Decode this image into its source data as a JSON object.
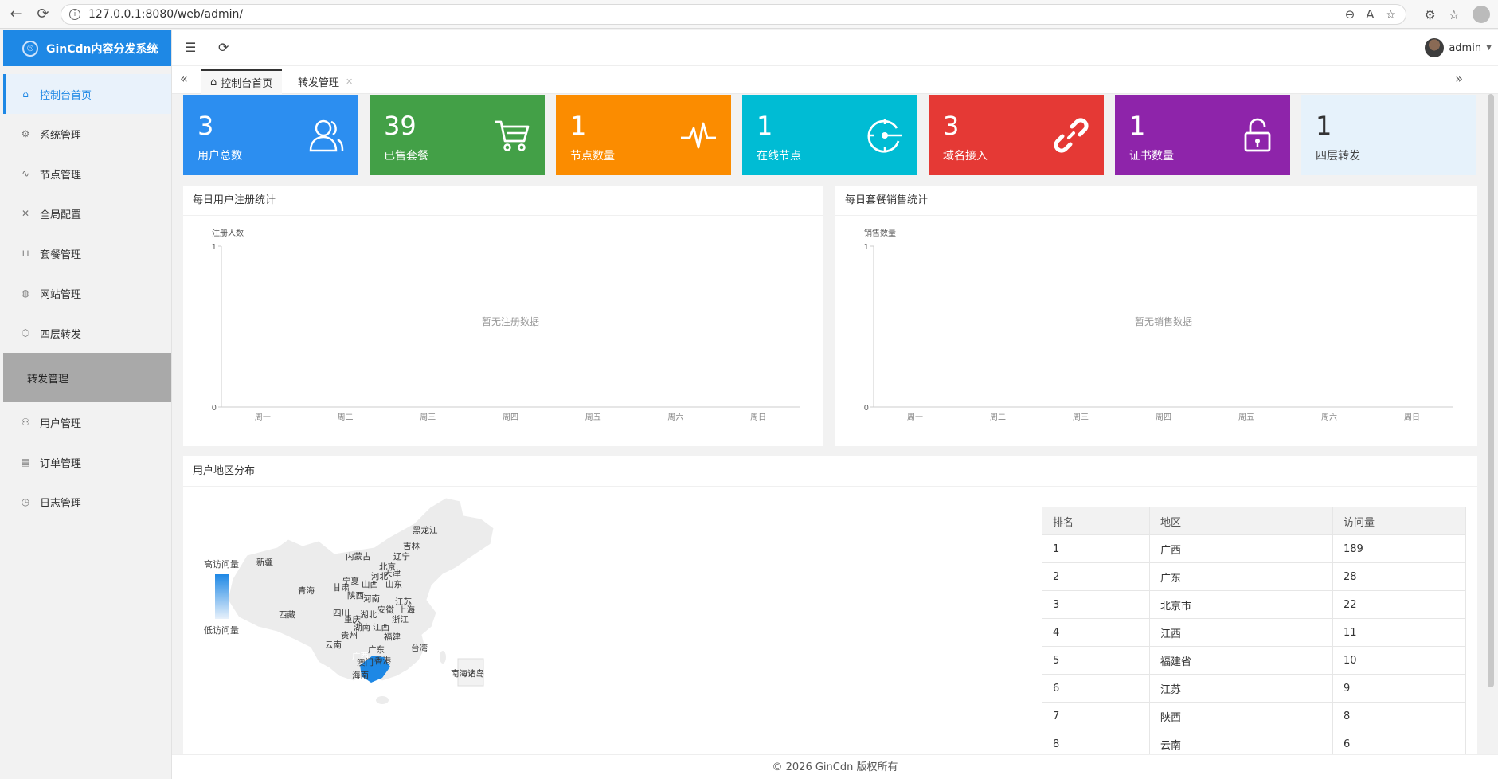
{
  "browser": {
    "url": "127.0.0.1:8080/web/admin/"
  },
  "sidebar": {
    "logo": "GinCdn内容分发系统",
    "items": [
      {
        "label": "控制台首页",
        "icon": "home-icon"
      },
      {
        "label": "系统管理",
        "icon": "gear-icon"
      },
      {
        "label": "节点管理",
        "icon": "pulse-icon"
      },
      {
        "label": "全局配置",
        "icon": "tools-icon"
      },
      {
        "label": "套餐管理",
        "icon": "cart-icon"
      },
      {
        "label": "网站管理",
        "icon": "globe-icon"
      },
      {
        "label": "四层转发",
        "icon": "cube-icon"
      }
    ],
    "submenu": "转发管理",
    "items2": [
      {
        "label": "用户管理",
        "icon": "users-icon"
      },
      {
        "label": "订单管理",
        "icon": "document-icon"
      },
      {
        "label": "日志管理",
        "icon": "clock-icon"
      }
    ]
  },
  "header": {
    "user": "admin"
  },
  "tabs": [
    {
      "label": "控制台首页"
    },
    {
      "label": "转发管理"
    }
  ],
  "stats": [
    {
      "value": "3",
      "label": "用户总数",
      "color": "#2c8ef0",
      "icon": "users-icon"
    },
    {
      "value": "39",
      "label": "已售套餐",
      "color": "#43a047",
      "icon": "cart-icon"
    },
    {
      "value": "1",
      "label": "节点数量",
      "color": "#fb8c00",
      "icon": "pulse-icon"
    },
    {
      "value": "1",
      "label": "在线节点",
      "color": "#00bcd4",
      "icon": "target-icon"
    },
    {
      "value": "3",
      "label": "域名接入",
      "color": "#e53935",
      "icon": "link-icon"
    },
    {
      "value": "1",
      "label": "证书数量",
      "color": "#8e24aa",
      "icon": "lock-icon"
    },
    {
      "value": "1",
      "label": "四层转发",
      "color": "#e6f2fb",
      "icon": ""
    }
  ],
  "panels": {
    "register_title": "每日用户注册统计",
    "sales_title": "每日套餐销售统计",
    "region_title": "用户地区分布"
  },
  "chart_data": [
    {
      "type": "line",
      "title": "每日用户注册统计",
      "ylabel": "注册人数",
      "categories": [
        "周一",
        "周二",
        "周三",
        "周四",
        "周五",
        "周六",
        "周日"
      ],
      "yticks": [
        "0",
        "1"
      ],
      "ylim": [
        0,
        1
      ],
      "empty_text": "暂无注册数据",
      "series": []
    },
    {
      "type": "line",
      "title": "每日套餐销售统计",
      "ylabel": "销售数量",
      "categories": [
        "周一",
        "周二",
        "周三",
        "周四",
        "周五",
        "周六",
        "周日"
      ],
      "yticks": [
        "0",
        "1"
      ],
      "ylim": [
        0,
        1
      ],
      "empty_text": "暂无销售数据",
      "series": []
    }
  ],
  "map": {
    "legend_high": "高访问量",
    "legend_low": "低访问量",
    "regions": [
      "黑龙江",
      "吉林",
      "辽宁",
      "内蒙古",
      "北京",
      "天津",
      "河北",
      "山东",
      "新疆",
      "青海",
      "甘肃",
      "宁夏",
      "山西",
      "陕西",
      "河南",
      "江苏",
      "西藏",
      "四川",
      "湖北",
      "安徽",
      "上海",
      "重庆",
      "浙江",
      "湖南",
      "江西",
      "贵州",
      "福建",
      "云南",
      "广西",
      "广东",
      "台湾",
      "澳门",
      "香港",
      "海南",
      "南海诸岛"
    ]
  },
  "ranking": {
    "headers": [
      "排名",
      "地区",
      "访问量"
    ],
    "rows": [
      [
        "1",
        "广西",
        "189"
      ],
      [
        "2",
        "广东",
        "28"
      ],
      [
        "3",
        "北京市",
        "22"
      ],
      [
        "4",
        "江西",
        "11"
      ],
      [
        "5",
        "福建省",
        "10"
      ],
      [
        "6",
        "江苏",
        "9"
      ],
      [
        "7",
        "陕西",
        "8"
      ],
      [
        "8",
        "云南",
        "6"
      ]
    ]
  },
  "footer": "© 2026 GinCdn 版权所有"
}
